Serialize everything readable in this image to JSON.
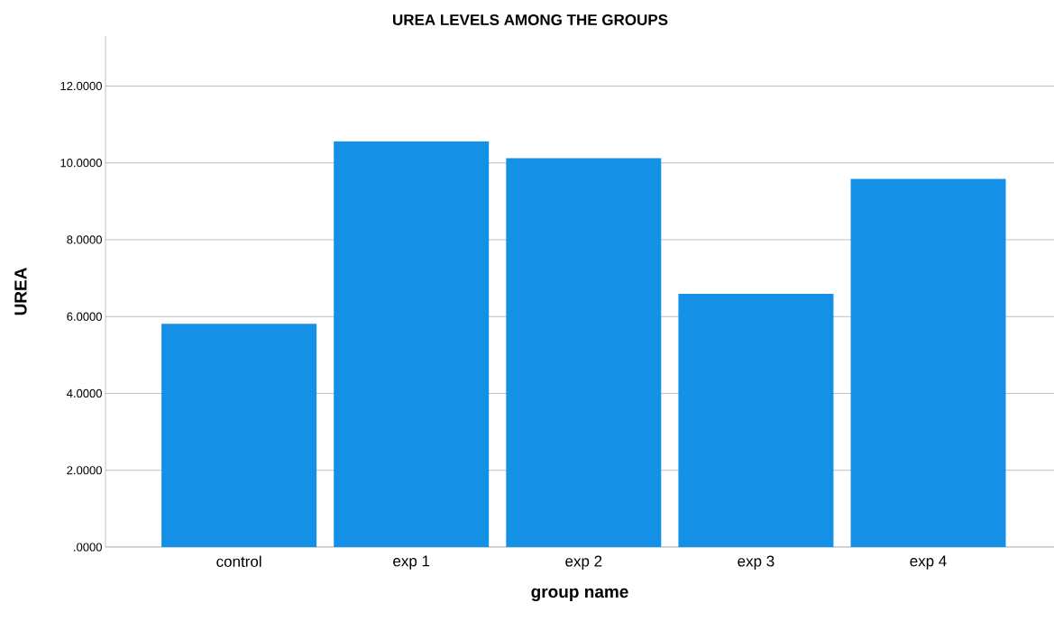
{
  "chart_data": {
    "type": "bar",
    "title": "UREA LEVELS AMONG THE GROUPS",
    "xlabel": "group name",
    "ylabel": "UREA",
    "categories": [
      "control",
      "exp 1",
      "exp 2",
      "exp 3",
      "exp 4"
    ],
    "values": [
      5.81,
      10.56,
      10.12,
      6.59,
      9.58
    ],
    "color": "#1490e6",
    "ylim": [
      0,
      13.3
    ],
    "yticks": [
      {
        "value": 0,
        "label": ".0000"
      },
      {
        "value": 2,
        "label": "2.0000"
      },
      {
        "value": 4,
        "label": "4.0000"
      },
      {
        "value": 6,
        "label": "6.0000"
      },
      {
        "value": 8,
        "label": "8.0000"
      },
      {
        "value": 10,
        "label": "10.0000"
      },
      {
        "value": 12,
        "label": "12.0000"
      }
    ],
    "grid": "y"
  }
}
